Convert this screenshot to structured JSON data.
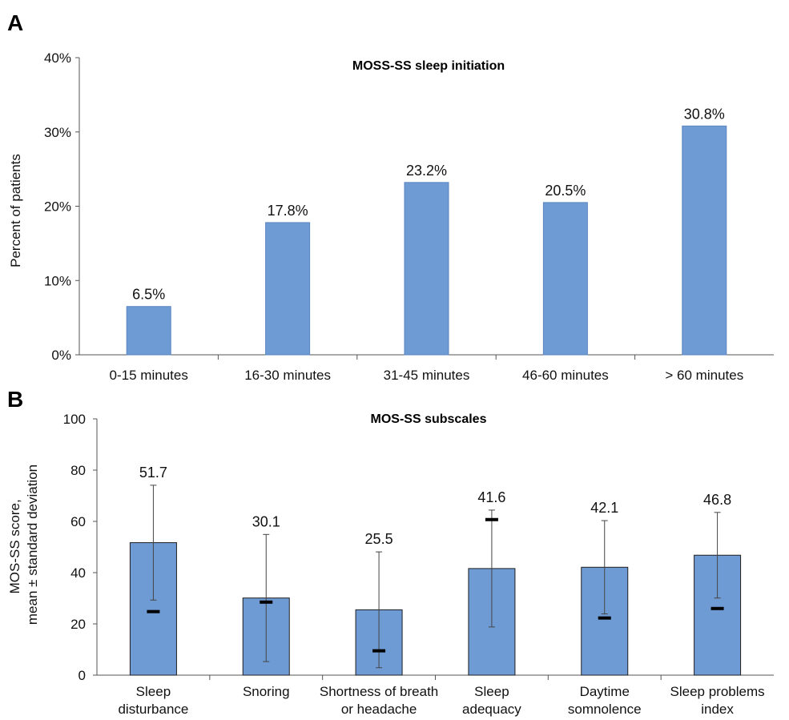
{
  "chart_data": [
    {
      "type": "bar",
      "panel": "A",
      "title": "MOSS-SS sleep initiation",
      "ylabel": "Percent of patients",
      "xlabel": "",
      "categories": [
        "0-15 minutes",
        "16-30 minutes",
        "31-45 minutes",
        "46-60 minutes",
        "> 60 minutes"
      ],
      "values": [
        6.5,
        17.8,
        23.2,
        20.5,
        30.8
      ],
      "value_labels": [
        "6.5%",
        "17.8%",
        "23.2%",
        "20.5%",
        "30.8%"
      ],
      "ylim": [
        0,
        40
      ],
      "yticks": [
        0,
        10,
        20,
        30,
        40
      ],
      "ytick_labels": [
        "0%",
        "10%",
        "20%",
        "30%",
        "40%"
      ],
      "grid": false,
      "bar_color": "#6f9bd4",
      "bar_edge_color": "#5a86c0"
    },
    {
      "type": "bar",
      "panel": "B",
      "title": "MOS-SS subscales",
      "ylabel": [
        "MOS-SS score,",
        "mean ± standard deviation"
      ],
      "xlabel": "",
      "categories": [
        [
          "Sleep",
          "disturbance"
        ],
        [
          "Snoring"
        ],
        [
          "Shortness of breath",
          "or headache"
        ],
        [
          "Sleep",
          "adequacy"
        ],
        [
          "Daytime",
          "somnolence"
        ],
        [
          "Sleep problems",
          "index"
        ]
      ],
      "values": [
        51.7,
        30.1,
        25.5,
        41.6,
        42.1,
        46.8
      ],
      "value_labels": [
        "51.7",
        "30.1",
        "25.5",
        "41.6",
        "42.1",
        "46.8"
      ],
      "error_low": [
        29.3,
        5.3,
        2.9,
        18.8,
        23.9,
        30.1
      ],
      "error_high": [
        74.1,
        54.9,
        48.1,
        64.4,
        60.3,
        63.5
      ],
      "markers": [
        24.8,
        28.5,
        9.5,
        60.7,
        22.3,
        26.0
      ],
      "ylim": [
        0,
        100
      ],
      "yticks": [
        0,
        20,
        40,
        60,
        80,
        100
      ],
      "grid": false,
      "bar_color": "#6f9bd4",
      "bar_edge_color": "#1f1f1f"
    }
  ]
}
